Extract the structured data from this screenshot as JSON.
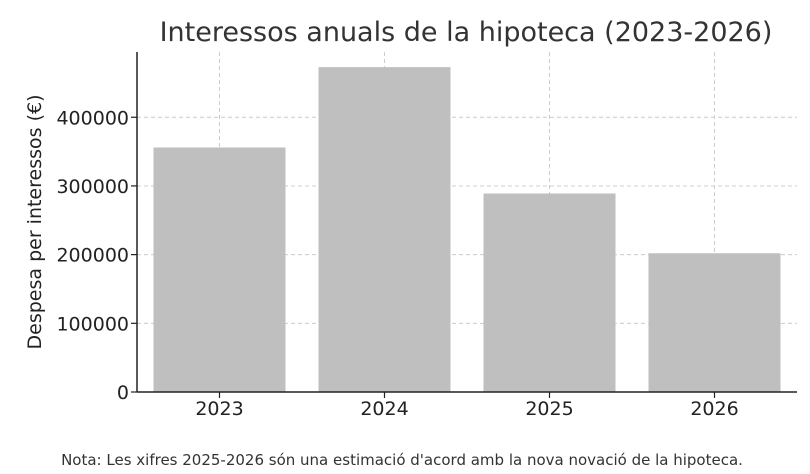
{
  "chart_data": {
    "type": "bar",
    "title": "Interessos anuals de la hipoteca (2023-2026)",
    "xlabel": "",
    "ylabel": "Despesa per interessos (€)",
    "categories": [
      "2023",
      "2024",
      "2025",
      "2026"
    ],
    "values": [
      356000,
      473000,
      289000,
      202000
    ],
    "ylim": [
      0,
      495000
    ],
    "yticks": [
      0,
      100000,
      200000,
      300000,
      400000
    ],
    "ytick_labels": [
      "0",
      "100000",
      "200000",
      "300000",
      "400000"
    ],
    "grid": true,
    "bar_color": "#bfbfbf",
    "note": "Nota: Les xifres 2025-2026 són una estimació d'acord amb la nova novació de la hipoteca."
  }
}
